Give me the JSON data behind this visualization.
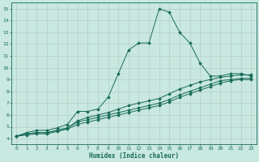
{
  "xlabel": "Humidex (Indice chaleur)",
  "background_color": "#c8e8e0",
  "grid_color": "#b0c8c0",
  "line_color": "#1a6b5a",
  "xlim": [
    -0.5,
    23.5
  ],
  "ylim": [
    3.5,
    15.5
  ],
  "xticks": [
    0,
    1,
    2,
    3,
    4,
    5,
    6,
    7,
    8,
    9,
    10,
    11,
    12,
    13,
    14,
    15,
    16,
    17,
    18,
    19,
    20,
    21,
    22,
    23
  ],
  "yticks": [
    4,
    5,
    6,
    7,
    8,
    9,
    10,
    11,
    12,
    13,
    14,
    15
  ],
  "line1_x": [
    0,
    1,
    2,
    3,
    4,
    5,
    6,
    7,
    8,
    9,
    10,
    11,
    12,
    13,
    14,
    15,
    16,
    17,
    18,
    19,
    20,
    21,
    22,
    23
  ],
  "line1_y": [
    4.2,
    4.5,
    4.7,
    4.7,
    4.9,
    5.2,
    6.3,
    6.3,
    6.5,
    7.5,
    9.5,
    11.5,
    12.1,
    12.1,
    15.0,
    14.7,
    13.0,
    12.1,
    10.4,
    9.3,
    9.3,
    9.5,
    9.5,
    9.3
  ],
  "line2_x": [
    0,
    1,
    2,
    3,
    4,
    5,
    6,
    7,
    8,
    9,
    10,
    11,
    12,
    13,
    14,
    15,
    16,
    17,
    18,
    19,
    20,
    21,
    22,
    23
  ],
  "line2_y": [
    4.2,
    4.4,
    4.5,
    4.5,
    4.7,
    4.9,
    5.5,
    5.8,
    6.0,
    6.2,
    6.5,
    6.8,
    7.0,
    7.2,
    7.4,
    7.8,
    8.2,
    8.5,
    8.8,
    9.0,
    9.2,
    9.3,
    9.4,
    9.4
  ],
  "line3_x": [
    0,
    1,
    2,
    3,
    4,
    5,
    6,
    7,
    8,
    9,
    10,
    11,
    12,
    13,
    14,
    15,
    16,
    17,
    18,
    19,
    20,
    21,
    22,
    23
  ],
  "line3_y": [
    4.2,
    4.4,
    4.5,
    4.5,
    4.7,
    4.9,
    5.4,
    5.6,
    5.8,
    6.0,
    6.2,
    6.4,
    6.6,
    6.8,
    7.0,
    7.3,
    7.7,
    8.0,
    8.3,
    8.6,
    8.9,
    9.0,
    9.1,
    9.1
  ],
  "line4_x": [
    0,
    1,
    2,
    3,
    4,
    5,
    6,
    7,
    8,
    9,
    10,
    11,
    12,
    13,
    14,
    15,
    16,
    17,
    18,
    19,
    20,
    21,
    22,
    23
  ],
  "line4_y": [
    4.2,
    4.3,
    4.4,
    4.4,
    4.6,
    4.8,
    5.2,
    5.4,
    5.6,
    5.8,
    6.0,
    6.2,
    6.4,
    6.6,
    6.8,
    7.1,
    7.5,
    7.8,
    8.1,
    8.4,
    8.7,
    8.9,
    9.0,
    9.0
  ]
}
